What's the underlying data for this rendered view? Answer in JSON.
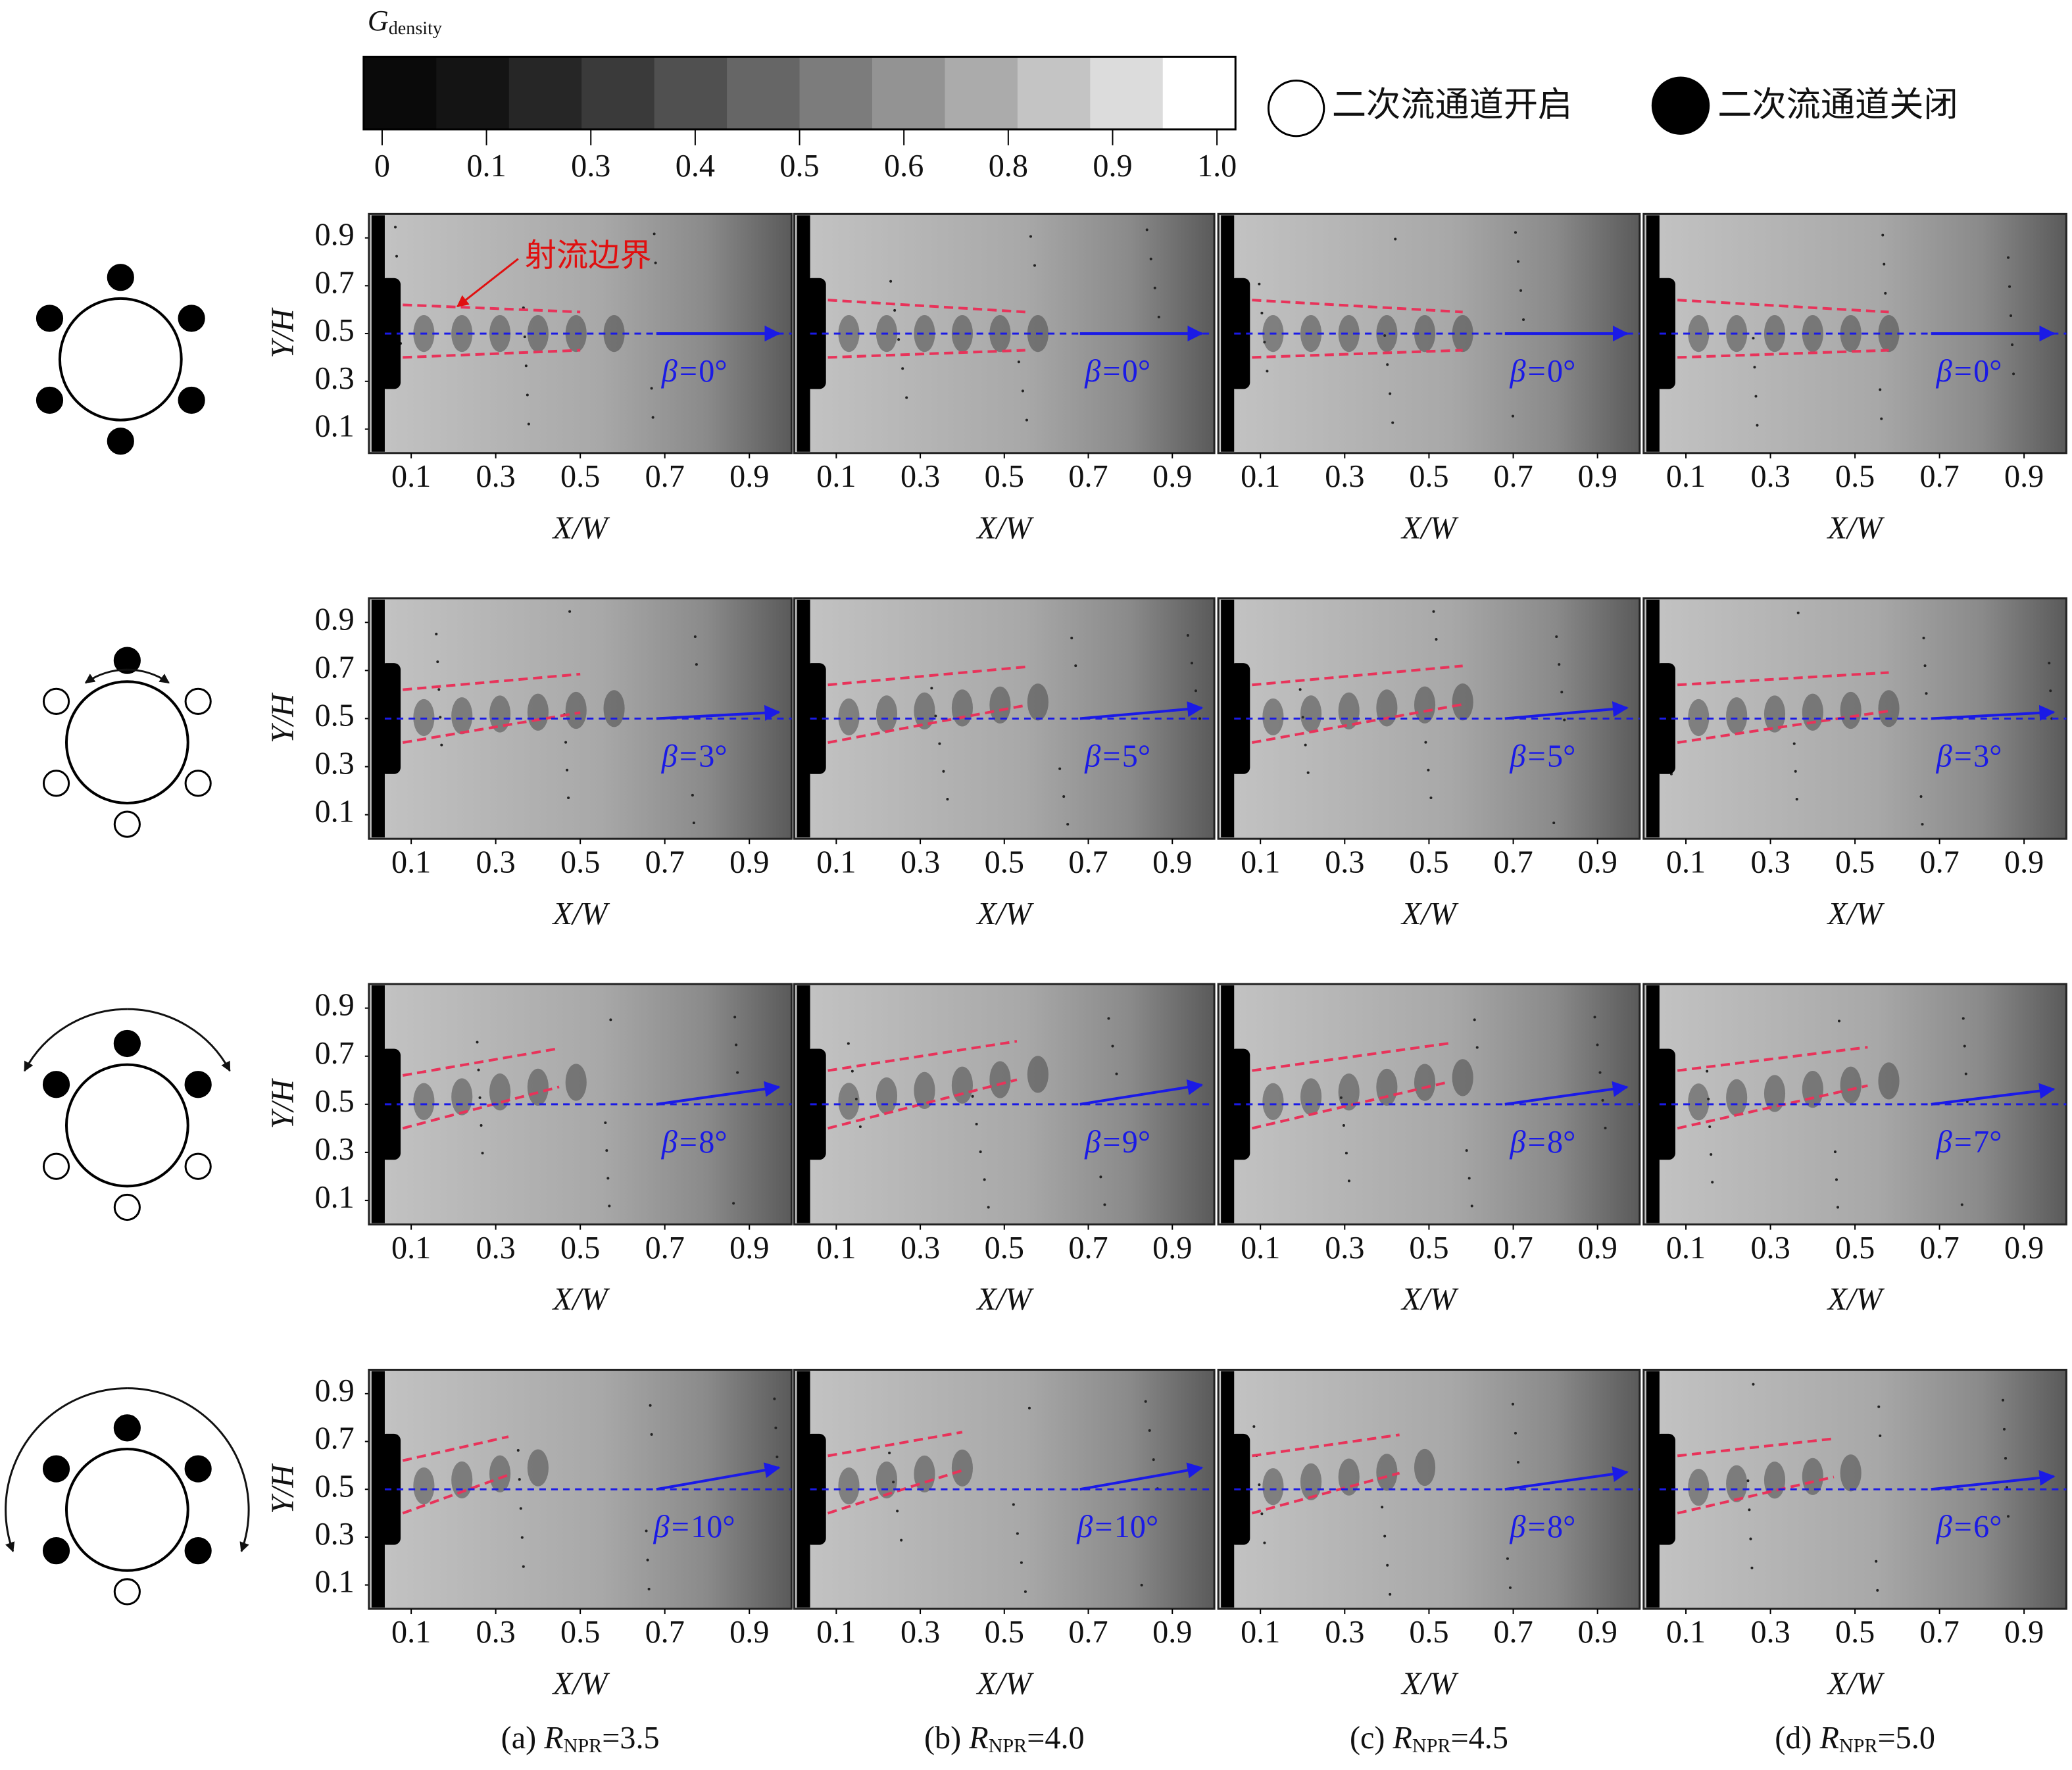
{
  "colorbar": {
    "title": "G",
    "title_sub": "density",
    "ticks": [
      0,
      0.1,
      0.3,
      0.4,
      0.5,
      0.6,
      0.8,
      0.9,
      {
        "value": 1,
        "label": "1.0"
      }
    ]
  },
  "legend": [
    {
      "label": "二次流通道开启"
    },
    {
      "label": "二次流通道关闭"
    }
  ],
  "axes": {
    "xlabel": "X/W",
    "ylabel": "Y/H",
    "xlim": [
      0,
      1
    ],
    "ylim": [
      0,
      1
    ],
    "xticks": [
      0.1,
      0.3,
      0.5,
      0.7,
      0.9
    ],
    "yticks": [
      0.1,
      0.3,
      0.5,
      0.7,
      0.9
    ]
  },
  "annotation": "射流边界",
  "beta_label": "β=",
  "degree": "°",
  "npr_symbol": "R",
  "npr_sub": "NPR",
  "columns": [
    {
      "tag": "(a)",
      "npr": "=3.5"
    },
    {
      "tag": "(b)",
      "npr": "=4.0"
    },
    {
      "tag": "(c)",
      "npr": "=4.5"
    },
    {
      "tag": "(d)",
      "npr": "=5.0"
    }
  ],
  "rows": [
    {
      "beta": [
        0,
        0,
        0,
        0
      ]
    },
    {
      "beta": [
        3,
        5,
        5,
        3
      ]
    },
    {
      "beta": [
        8,
        9,
        8,
        7
      ]
    },
    {
      "beta": [
        10,
        10,
        8,
        6
      ]
    }
  ]
}
